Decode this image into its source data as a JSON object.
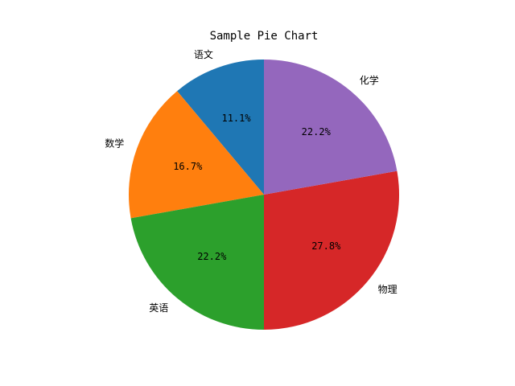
{
  "chart_data": {
    "type": "pie",
    "title": "Sample Pie Chart",
    "labels": [
      "语文",
      "数学",
      "英语",
      "物理",
      "化学"
    ],
    "values": [
      11.1,
      16.7,
      22.2,
      27.8,
      22.2
    ],
    "percent_labels": [
      "11.1%",
      "16.7%",
      "22.2%",
      "27.8%",
      "22.2%"
    ],
    "colors": [
      "#1f77b4",
      "#ff7f0e",
      "#2ca02c",
      "#d62728",
      "#9467bd"
    ],
    "start_angle_deg": 90,
    "direction": "counterclockwise",
    "legend": "none"
  }
}
